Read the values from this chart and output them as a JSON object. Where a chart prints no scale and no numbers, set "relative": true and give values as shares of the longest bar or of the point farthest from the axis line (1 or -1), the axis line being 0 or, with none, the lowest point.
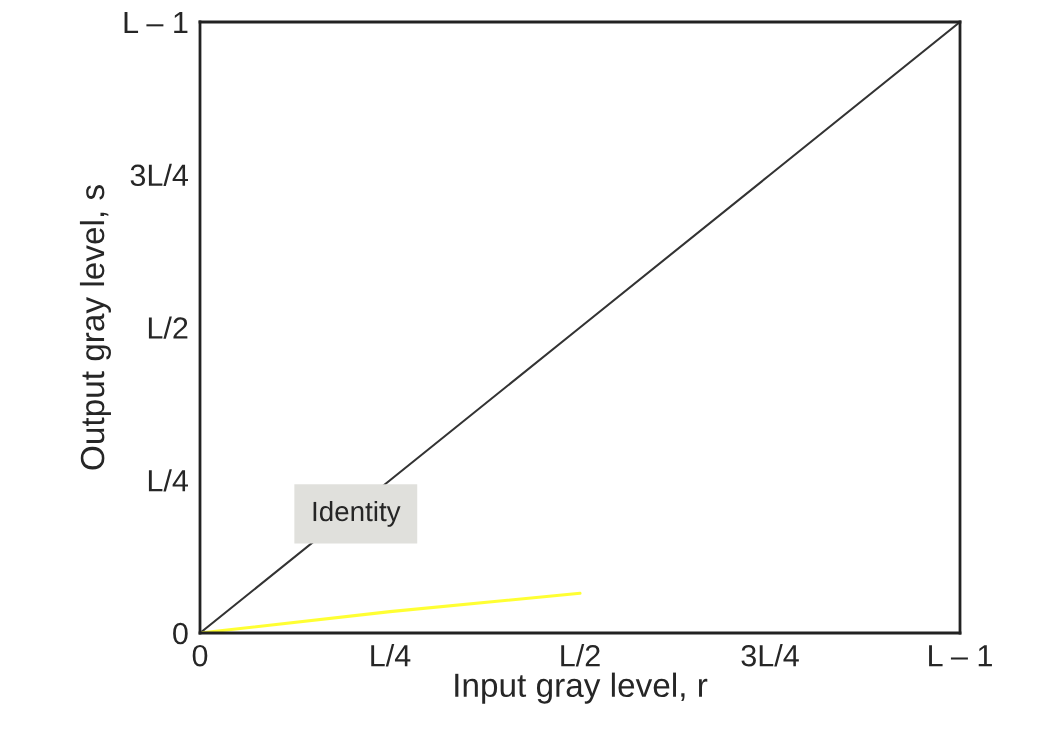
{
  "chart_data": {
    "type": "line",
    "relative": true,
    "xlabel": "Input gray level, r",
    "ylabel": "Output gray level, s",
    "categories": [
      "0",
      "L/4",
      "L/2",
      "3L/4",
      "L – 1"
    ],
    "series": [
      {
        "color": "#333333",
        "values": [
          0,
          0.25,
          0.5,
          0.75,
          1
        ]
      },
      {
        "color": "#ffff33",
        "values": [
          0,
          0.035,
          0.065,
          null,
          null
        ]
      }
    ],
    "annotations": [
      "Identity",
      "0",
      "L/4",
      "L/2",
      "3L/4",
      "L – 1"
    ],
    "grid": false,
    "legend": false,
    "marker": "none",
    "line_style": "solid"
  }
}
